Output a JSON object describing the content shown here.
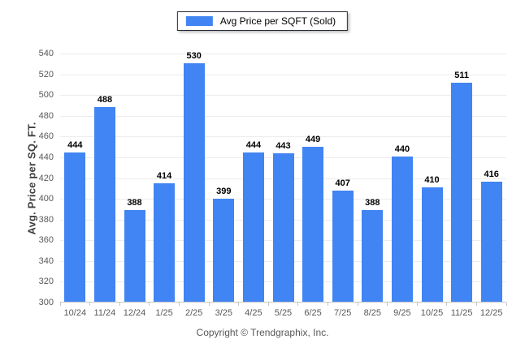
{
  "footer": {
    "text": "Copyright © Trendgraphix, Inc."
  },
  "chart_data": {
    "type": "bar",
    "title": "",
    "xlabel": "",
    "ylabel": "Avg. Price per SQ. FT.",
    "categories": [
      "10/24",
      "11/24",
      "12/24",
      "1/25",
      "2/25",
      "3/25",
      "4/25",
      "5/25",
      "6/25",
      "7/25",
      "8/25",
      "9/25",
      "10/25",
      "11/25",
      "12/25"
    ],
    "series": [
      {
        "name": "Avg Price per SQFT (Sold)",
        "values": [
          444,
          488,
          388,
          414,
          530,
          399,
          444,
          443,
          449,
          407,
          388,
          440,
          410,
          511,
          416
        ]
      }
    ],
    "ylim": [
      300,
      540
    ],
    "yticks": [
      300,
      320,
      340,
      360,
      380,
      400,
      420,
      440,
      460,
      480,
      500,
      520,
      540
    ],
    "grid": "horizontal",
    "legend_position": "top",
    "bar_color": "#4184F3",
    "value_labels": true
  }
}
